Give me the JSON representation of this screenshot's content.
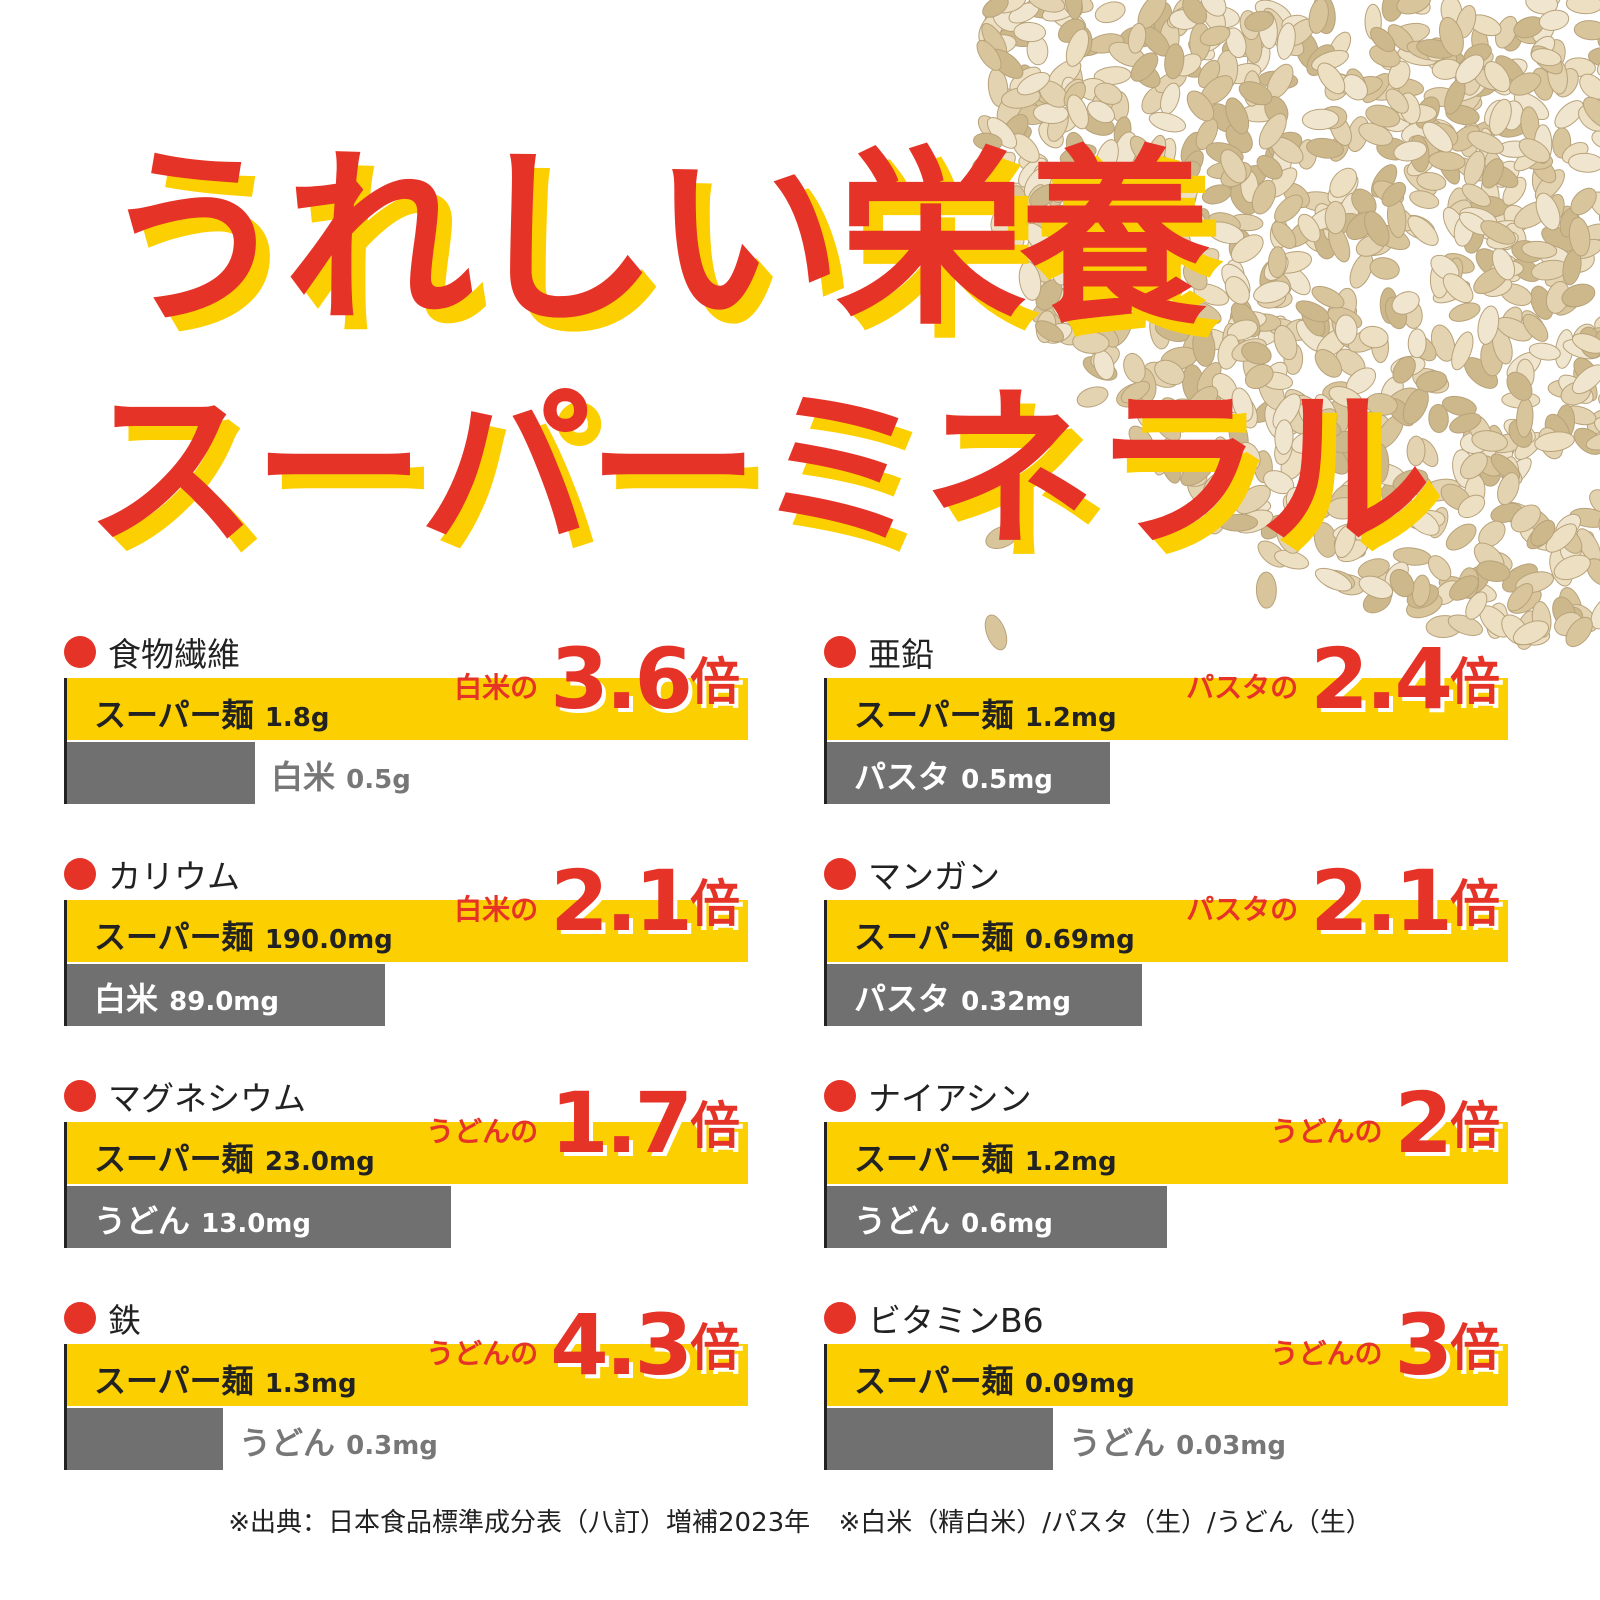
{
  "title_line1": "うれしい栄養",
  "title_line2": "スーパーミネラル",
  "colors": {
    "accent_red": "#e63327",
    "yellow": "#fcd000",
    "gray": "#707070"
  },
  "footer": {
    "source": "※出典：日本食品標準成分表（八訂）増補2023年",
    "note": "※白米（精白米）/パスタ（生）/うどん（生）"
  },
  "chart_data": [
    {
      "type": "bar",
      "title": "食物繊維",
      "series": [
        {
          "name": "スーパー麺",
          "value": 1.8
        },
        {
          "name": "白米",
          "value": 0.5
        }
      ],
      "unit": "g",
      "ratio_prefix": "白米の",
      "ratio": "3.6",
      "ratio_suffix": "倍"
    },
    {
      "type": "bar",
      "title": "亜鉛",
      "series": [
        {
          "name": "スーパー麺",
          "value": 1.2
        },
        {
          "name": "パスタ",
          "value": 0.5
        }
      ],
      "unit": "mg",
      "ratio_prefix": "パスタの",
      "ratio": "2.4",
      "ratio_suffix": "倍"
    },
    {
      "type": "bar",
      "title": "カリウム",
      "series": [
        {
          "name": "スーパー麺",
          "value": 190.0
        },
        {
          "name": "白米",
          "value": 89.0
        }
      ],
      "unit": "mg",
      "ratio_prefix": "白米の",
      "ratio": "2.1",
      "ratio_suffix": "倍"
    },
    {
      "type": "bar",
      "title": "マンガン",
      "series": [
        {
          "name": "スーパー麺",
          "value": 0.69
        },
        {
          "name": "パスタ",
          "value": 0.32
        }
      ],
      "unit": "mg",
      "ratio_prefix": "パスタの",
      "ratio": "2.1",
      "ratio_suffix": "倍"
    },
    {
      "type": "bar",
      "title": "マグネシウム",
      "series": [
        {
          "name": "スーパー麺",
          "value": 23.0
        },
        {
          "name": "うどん",
          "value": 13.0
        }
      ],
      "unit": "mg",
      "ratio_prefix": "うどんの",
      "ratio": "1.7",
      "ratio_suffix": "倍"
    },
    {
      "type": "bar",
      "title": "ナイアシン",
      "series": [
        {
          "name": "スーパー麺",
          "value": 1.2
        },
        {
          "name": "うどん",
          "value": 0.6
        }
      ],
      "unit": "mg",
      "ratio_prefix": "うどんの",
      "ratio": "2",
      "ratio_suffix": "倍"
    },
    {
      "type": "bar",
      "title": "鉄",
      "series": [
        {
          "name": "スーパー麺",
          "value": 1.3
        },
        {
          "name": "うどん",
          "value": 0.3
        }
      ],
      "unit": "mg",
      "ratio_prefix": "うどんの",
      "ratio": "4.3",
      "ratio_suffix": "倍"
    },
    {
      "type": "bar",
      "title": "ビタミンB6",
      "series": [
        {
          "name": "スーパー麺",
          "value": 0.09
        },
        {
          "name": "うどん",
          "value": 0.03
        }
      ],
      "unit": "mg",
      "ratio_prefix": "うどんの",
      "ratio": "3",
      "ratio_suffix": "倍"
    }
  ],
  "labels": [
    {
      "main": "1.8g",
      "other": "0.5g"
    },
    {
      "main": "1.2mg",
      "other": "0.5mg"
    },
    {
      "main": "190.0mg",
      "other": "89.0mg"
    },
    {
      "main": "0.69mg",
      "other": "0.32mg"
    },
    {
      "main": "23.0mg",
      "other": "13.0mg"
    },
    {
      "main": "1.2mg",
      "other": "0.6mg"
    },
    {
      "main": "1.3mg",
      "other": "0.3mg"
    },
    {
      "main": "0.09mg",
      "other": "0.03mg"
    }
  ]
}
